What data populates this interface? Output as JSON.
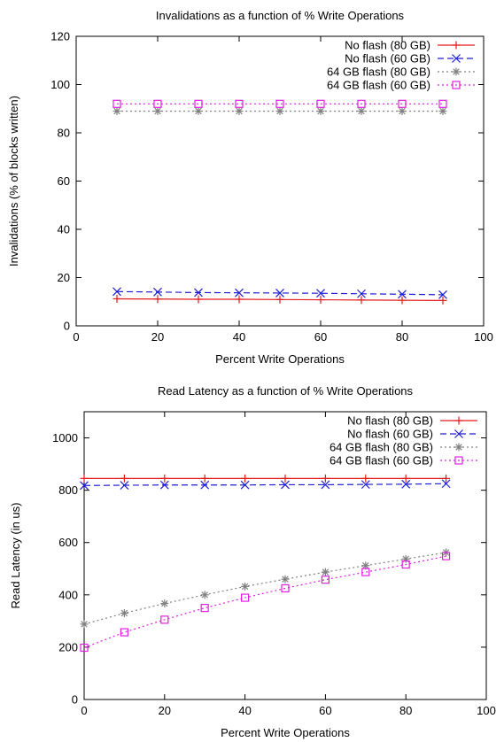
{
  "chart_data": [
    {
      "type": "line",
      "title": "Invalidations as a function of % Write Operations",
      "xlabel": "Percent Write Operations",
      "ylabel": "Invalidations (% of blocks written)",
      "xlim": [
        0,
        100
      ],
      "ylim": [
        0,
        120
      ],
      "xticks": [
        0,
        20,
        40,
        60,
        80,
        100
      ],
      "yticks": [
        0,
        20,
        40,
        60,
        80,
        100,
        120
      ],
      "grid": false,
      "legend_position": "top-right",
      "x": [
        10,
        20,
        30,
        40,
        50,
        60,
        70,
        80,
        90
      ],
      "series": [
        {
          "name": "No flash (80 GB)",
          "color": "#e41a1c",
          "marker": "plus",
          "dash": "solid",
          "values": [
            11.2,
            11.1,
            11.0,
            11.0,
            10.9,
            10.8,
            10.7,
            10.6,
            10.5
          ]
        },
        {
          "name": "No flash (60 GB)",
          "color": "#1f1fd6",
          "marker": "cross",
          "dash": "dashed",
          "values": [
            14.2,
            14.0,
            13.8,
            13.7,
            13.6,
            13.5,
            13.3,
            13.1,
            12.9
          ]
        },
        {
          "name": "64 GB flash (80 GB)",
          "color": "#808080",
          "marker": "star",
          "dash": "dotted",
          "values": [
            89,
            89,
            89,
            89,
            89,
            89,
            89,
            89,
            89
          ]
        },
        {
          "name": "64 GB flash (60 GB)",
          "color": "#e020e0",
          "marker": "square",
          "dash": "dotted",
          "values": [
            92,
            92,
            92,
            92,
            92,
            92,
            92,
            92,
            92
          ]
        }
      ]
    },
    {
      "type": "line",
      "title": "Read Latency as a function of % Write Operations",
      "xlabel": "Percent Write Operations",
      "ylabel": "Read Latency (in us)",
      "xlim": [
        0,
        100
      ],
      "ylim": [
        0,
        1100
      ],
      "xticks": [
        0,
        20,
        40,
        60,
        80,
        100
      ],
      "yticks": [
        0,
        200,
        400,
        600,
        800,
        1000
      ],
      "grid": false,
      "legend_position": "top-right",
      "x": [
        0,
        10,
        20,
        30,
        40,
        50,
        60,
        70,
        80,
        90
      ],
      "series": [
        {
          "name": "No flash (80 GB)",
          "color": "#e41a1c",
          "marker": "plus",
          "dash": "solid",
          "values": [
            845,
            845,
            845,
            845,
            845,
            845,
            845,
            845,
            845,
            845
          ]
        },
        {
          "name": "No flash (60 GB)",
          "color": "#1f1fd6",
          "marker": "cross",
          "dash": "dashed",
          "values": [
            818,
            819,
            820,
            820,
            820,
            821,
            821,
            822,
            823,
            825
          ]
        },
        {
          "name": "64 GB flash (80 GB)",
          "color": "#808080",
          "marker": "star",
          "dash": "dotted",
          "values": [
            288,
            330,
            367,
            400,
            432,
            460,
            487,
            512,
            537,
            562
          ]
        },
        {
          "name": "64 GB flash (60 GB)",
          "color": "#e020e0",
          "marker": "square",
          "dash": "dotted",
          "values": [
            198,
            257,
            305,
            350,
            389,
            425,
            458,
            487,
            516,
            548
          ]
        }
      ]
    }
  ]
}
